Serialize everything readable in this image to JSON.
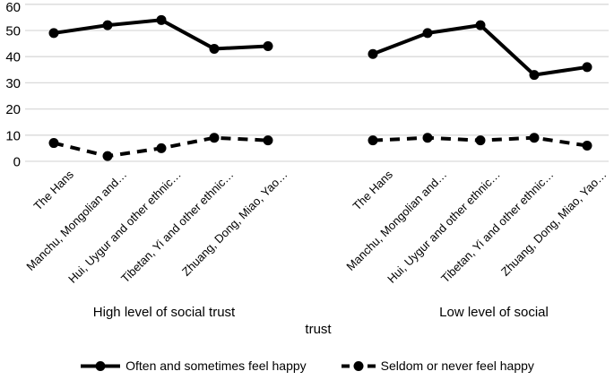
{
  "chart_data": {
    "type": "line",
    "title": "",
    "xlabel": "",
    "ylabel": "",
    "ylim": [
      0,
      60
    ],
    "yticks": [
      0,
      10,
      20,
      30,
      40,
      50,
      60
    ],
    "grid": true,
    "gridline_color": "#d9d9d9",
    "series_color": "#000000",
    "background": "#ffffff",
    "legend_position": "bottom",
    "categories": [
      "The Hans",
      "Manchu, Mongolian and…",
      "Hui, Uygur and other ethnic…",
      "Tibetan, Yi and other ethnic…",
      "Zhuang, Dong, Miao, Yao…"
    ],
    "group_labels": {
      "left": "High level of social trust",
      "right_line1": "Low level of social",
      "right_line2": "trust"
    },
    "series": [
      {
        "name": "Often and sometimes feel happy",
        "line_style": "solid",
        "marker": "circle",
        "values_by_group": [
          [
            49,
            52,
            54,
            43,
            44
          ],
          [
            41,
            49,
            52,
            33,
            36
          ]
        ]
      },
      {
        "name": "Seldom or never feel happy",
        "line_style": "dashed",
        "marker": "circle",
        "values_by_group": [
          [
            7,
            2,
            5,
            9,
            8
          ],
          [
            8,
            9,
            8,
            9,
            6
          ]
        ]
      }
    ]
  },
  "legend": {
    "items": [
      {
        "label": "Often and sometimes feel happy",
        "style": "solid"
      },
      {
        "label": "Seldom or never feel happy",
        "style": "dashed"
      }
    ]
  }
}
